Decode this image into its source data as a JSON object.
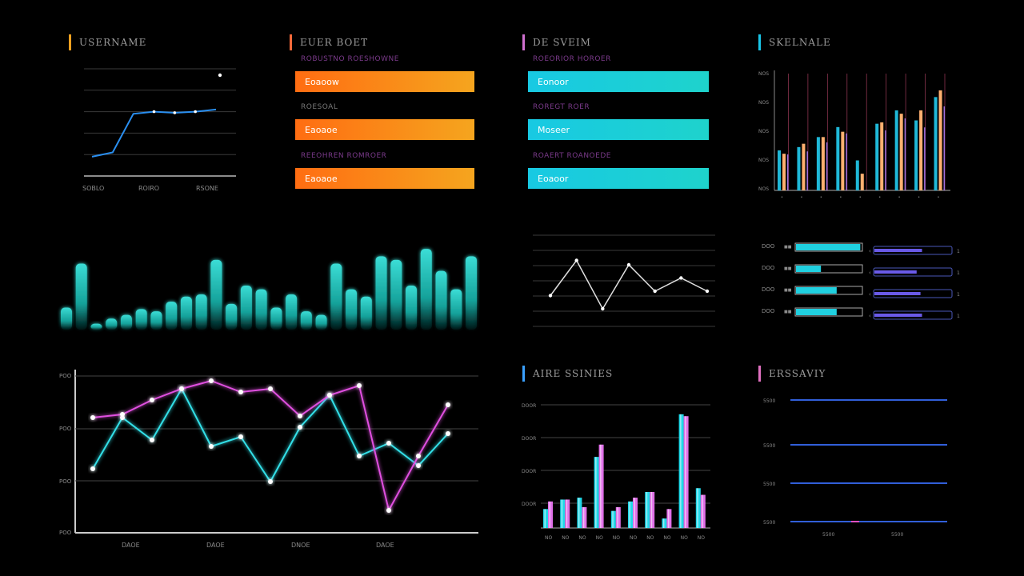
{
  "panels": {
    "p1": {
      "title": "USERNAME",
      "accent": "#f0a020"
    },
    "p2": {
      "title": "EUER BOET",
      "accent": "#ff6a3a"
    },
    "p3": {
      "title": "DE SVEIM",
      "accent": "#d070d0"
    },
    "p4": {
      "title": "SKELNALE",
      "accent": "#19c6e8"
    },
    "p5": {
      "title": "AIRE SSINIES",
      "accent": "#3aa0ff"
    },
    "p6": {
      "title": "ERSSAVIY",
      "accent": "#e070c0"
    }
  },
  "kpis_orange": {
    "sub": [
      "ROBUSTNO ROESHOWNE",
      "ROESOAL",
      "REEOHREN ROMROER"
    ],
    "items": [
      "Eoaoow",
      "Eaoaoe",
      "Eaoaoe"
    ],
    "color_start": "#ff6d12",
    "color_end": "#f5a51e"
  },
  "kpis_cyan": {
    "sub": [
      "ROEORIOR HOROER",
      "ROREGT ROER",
      "ROAERT ROANOEDE"
    ],
    "items": [
      "Eonoor",
      "Moseer",
      "Eoaoor"
    ],
    "color_start": "#18c9e3",
    "color_end": "#1ed3cc"
  },
  "chart_data": [
    {
      "id": "line-small",
      "type": "line",
      "x_labels": [
        "SOBLO",
        "ROIRO",
        "RSONE"
      ],
      "values": [
        18,
        22,
        58,
        60,
        59,
        60,
        62
      ],
      "ylim": [
        0,
        100
      ],
      "color": "#2a8ff0"
    },
    {
      "id": "bars-top-right",
      "type": "bar",
      "y_tick_labels": [
        "NOS",
        "NOS",
        "NOS",
        "NOS",
        "NOS"
      ],
      "series_colors": [
        "#1fb8d8",
        "#ffb070",
        "#ff6090",
        "#a070e0"
      ],
      "groups": [
        [
          60,
          55,
          12,
          0
        ],
        [
          65,
          70,
          25,
          0
        ],
        [
          80,
          80,
          30,
          0
        ],
        [
          95,
          88,
          30,
          0
        ],
        [
          45,
          25,
          0,
          0
        ],
        [
          100,
          102,
          30,
          0
        ],
        [
          120,
          115,
          30,
          0
        ],
        [
          105,
          120,
          30,
          0
        ],
        [
          140,
          150,
          30,
          0
        ]
      ],
      "ylim": [
        0,
        180
      ]
    },
    {
      "id": "glow-bars",
      "type": "bar",
      "values": [
        30,
        90,
        8,
        15,
        20,
        28,
        25,
        38,
        45,
        48,
        95,
        35,
        60,
        55,
        30,
        48,
        25,
        20,
        90,
        55,
        45,
        100,
        95,
        60,
        110,
        80,
        55,
        100
      ],
      "ylim": [
        0,
        120
      ],
      "color": "#22e0d8"
    },
    {
      "id": "line-center",
      "type": "line",
      "values": [
        35,
        75,
        20,
        70,
        40,
        55,
        40
      ],
      "ylim": [
        0,
        100
      ],
      "color": "#e0e0e0"
    },
    {
      "id": "progress-rows",
      "type": "bar",
      "labels_left": [
        "DOO",
        "DOO",
        "DOO",
        "DOO"
      ],
      "left_values": [
        0.98,
        0.38,
        0.62,
        0.62
      ],
      "right_values": [
        0.62,
        0.55,
        0.6,
        0.62
      ],
      "right_labels": [
        "1",
        "1",
        "1",
        "1"
      ],
      "colors": {
        "left": "#20d0e0",
        "right": "#6a5ae8"
      }
    },
    {
      "id": "line-big",
      "type": "line",
      "y_tick_labels": [
        "POO",
        "POO",
        "POO",
        "POO"
      ],
      "x_labels": [
        "DAOE",
        "DAOE",
        "DNOE",
        "DAOE"
      ],
      "series": [
        {
          "name": "",
          "color": "#33e0e8",
          "values": [
            40,
            72,
            58,
            90,
            54,
            60,
            32,
            66,
            86,
            48,
            56,
            42,
            62
          ]
        },
        {
          "name": "",
          "color": "#e050e0",
          "values": [
            72,
            74,
            83,
            90,
            95,
            88,
            90,
            73,
            86,
            92,
            14,
            48,
            80
          ]
        }
      ],
      "ylim": [
        0,
        100
      ]
    },
    {
      "id": "bars-bottom-center",
      "type": "bar",
      "y_tick_labels": [
        "DOOR",
        "DOOR",
        "DOOR",
        "DOOR"
      ],
      "x_labels": [
        "NO",
        "NO",
        "NO",
        "NO",
        "NO",
        "NO",
        "NO",
        "NO",
        "NO",
        "NO"
      ],
      "series_colors": [
        "#20d8e8",
        "#e070e8"
      ],
      "groups": [
        [
          20,
          28
        ],
        [
          30,
          30
        ],
        [
          32,
          22
        ],
        [
          75,
          88
        ],
        [
          18,
          22
        ],
        [
          28,
          32
        ],
        [
          38,
          38
        ],
        [
          10,
          20
        ],
        [
          120,
          118
        ],
        [
          42,
          35
        ]
      ],
      "ylim": [
        0,
        130
      ]
    },
    {
      "id": "lines-bottom-right",
      "type": "line",
      "y_tick_labels": [
        "5500",
        "5500",
        "5500",
        "5500"
      ],
      "x_labels": [
        "5500",
        "5500"
      ],
      "color": "#3a70ff",
      "values": [
        4,
        3,
        2,
        1
      ]
    }
  ]
}
